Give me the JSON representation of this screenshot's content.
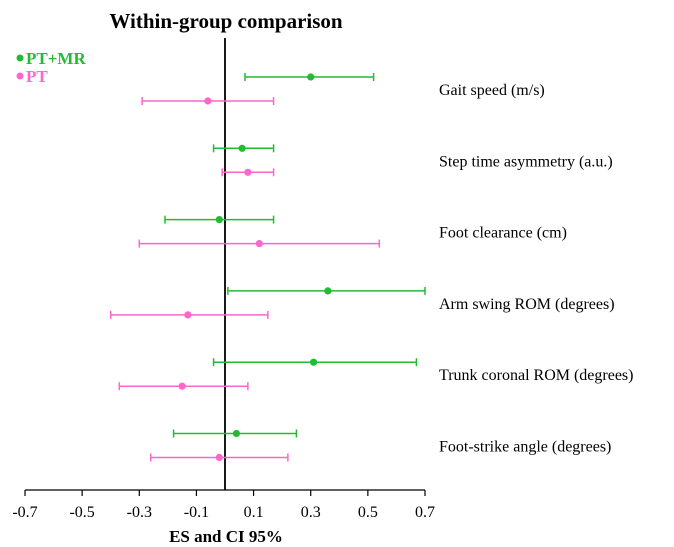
{
  "chart_data": {
    "type": "scatter",
    "subtype": "forest-plot",
    "title": "Within-group comparison",
    "xlabel": "ES and CI 95%",
    "xlim": [
      -0.7,
      0.7
    ],
    "x_ticks": [
      "-0.7",
      "-0.5",
      "-0.3",
      "-0.1",
      "0.1",
      "0.3",
      "0.5",
      "0.7"
    ],
    "reference_line": 0,
    "legend_position": "top-left",
    "categories": [
      "Gait speed (m/s)",
      "Step time asymmetry (a.u.)",
      "Foot clearance (cm)",
      "Arm swing ROM (degrees)",
      "Trunk coronal ROM (degrees)",
      "Foot-strike angle (degrees)"
    ],
    "series": [
      {
        "name": "PT+MR",
        "color": "#22bb33",
        "points": [
          {
            "es": 0.3,
            "low": 0.07,
            "high": 0.52
          },
          {
            "es": 0.06,
            "low": -0.04,
            "high": 0.17
          },
          {
            "es": -0.02,
            "low": -0.21,
            "high": 0.17
          },
          {
            "es": 0.36,
            "low": 0.01,
            "high": 0.7
          },
          {
            "es": 0.31,
            "low": -0.04,
            "high": 0.67
          },
          {
            "es": 0.04,
            "low": -0.18,
            "high": 0.25
          }
        ]
      },
      {
        "name": "PT",
        "color": "#ff66cc",
        "points": [
          {
            "es": -0.06,
            "low": -0.29,
            "high": 0.17
          },
          {
            "es": 0.08,
            "low": -0.01,
            "high": 0.17
          },
          {
            "es": 0.12,
            "low": -0.3,
            "high": 0.54
          },
          {
            "es": -0.13,
            "low": -0.4,
            "high": 0.15
          },
          {
            "es": -0.15,
            "low": -0.37,
            "high": 0.08
          },
          {
            "es": -0.02,
            "low": -0.26,
            "high": 0.22
          }
        ]
      }
    ]
  }
}
